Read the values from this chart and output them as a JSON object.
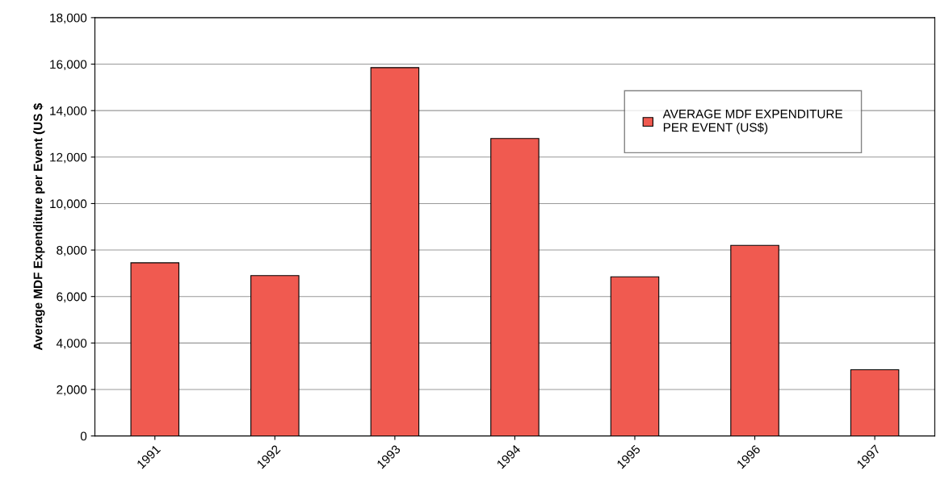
{
  "chart_data": {
    "type": "bar",
    "ylabel": "Average MDF Expenditure per Event (US $",
    "categories": [
      "1991",
      "1992",
      "1993",
      "1994",
      "1995",
      "1996",
      "1997"
    ],
    "series": [
      {
        "name": "AVERAGE MDF EXPENDITURE\nPER EVENT (US$)",
        "color": "#f05a50",
        "values": [
          7450,
          6900,
          15850,
          12800,
          6850,
          8200,
          2850
        ]
      }
    ],
    "ylim": [
      0,
      18000
    ],
    "yticks": [
      {
        "value": 0,
        "label": "0"
      },
      {
        "value": 2000,
        "label": "2,000"
      },
      {
        "value": 4000,
        "label": "4,000"
      },
      {
        "value": 6000,
        "label": "6,000"
      },
      {
        "value": 8000,
        "label": "8,000"
      },
      {
        "value": 10000,
        "label": "10,000"
      },
      {
        "value": 12000,
        "label": "12,000"
      },
      {
        "value": 14000,
        "label": "14,000"
      },
      {
        "value": 16000,
        "label": "16,000"
      },
      {
        "value": 18000,
        "label": "18,000"
      }
    ],
    "grid": "y",
    "legend": "top right"
  }
}
